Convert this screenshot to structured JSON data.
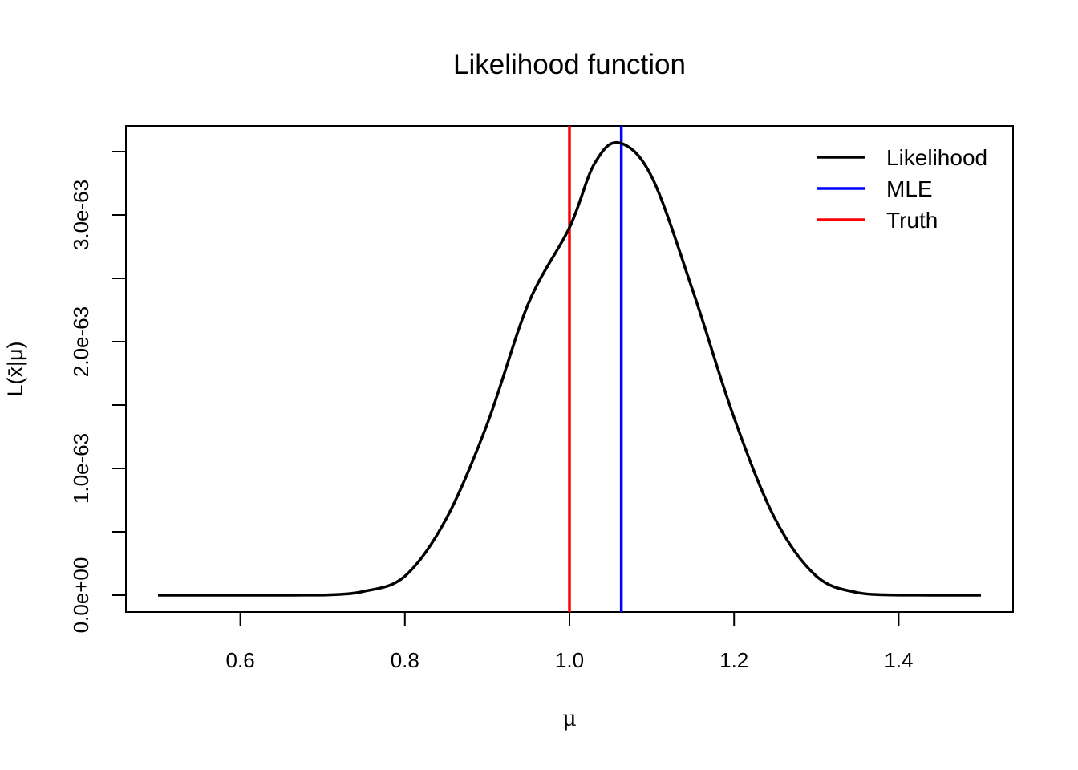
{
  "chart_data": {
    "type": "line",
    "title": "Likelihood function",
    "xlabel": "μ",
    "ylabel": "L(x̄|μ)",
    "xlim": [
      0.5,
      1.5
    ],
    "ylim": [
      0,
      3.5e-63
    ],
    "x_ticks": [
      0.6,
      0.8,
      1.0,
      1.2,
      1.4
    ],
    "x_tick_labels": [
      "0.6",
      "0.8",
      "1.0",
      "1.2",
      "1.4"
    ],
    "y_ticks": [
      0,
      5e-64,
      1e-63,
      1.5e-63,
      2e-63,
      2.5e-63,
      3e-63,
      3.5e-63
    ],
    "y_tick_labels": [
      "0.0e+00",
      "",
      "1.0e-63",
      "",
      "2.0e-63",
      "",
      "3.0e-63",
      ""
    ],
    "series": [
      {
        "name": "Likelihood",
        "color": "#000000",
        "x": [
          0.5,
          0.55,
          0.6,
          0.65,
          0.7,
          0.75,
          0.8,
          0.85,
          0.9,
          0.95,
          1.0,
          1.03,
          1.06,
          1.1,
          1.15,
          1.2,
          1.25,
          1.3,
          1.35,
          1.4,
          1.45,
          1.5
        ],
        "y": [
          0,
          0,
          0,
          0.0,
          1e-66,
          3e-65,
          1.5e-64,
          6e-64,
          1.35e-63,
          2.3e-63,
          2.9e-63,
          3.4e-63,
          3.57e-63,
          3.3e-63,
          2.4e-63,
          1.4e-63,
          6e-64,
          1.5e-64,
          2e-65,
          1e-66,
          0,
          0
        ]
      }
    ],
    "vlines": [
      {
        "name": "MLE",
        "x": 1.063,
        "color": "#0000ff"
      },
      {
        "name": "Truth",
        "x": 1.0,
        "color": "#ff0000"
      }
    ],
    "legend": {
      "position": "top-right",
      "entries": [
        {
          "label": "Likelihood",
          "color": "#000000"
        },
        {
          "label": "MLE",
          "color": "#0000ff"
        },
        {
          "label": "Truth",
          "color": "#ff0000"
        }
      ]
    },
    "grid": false
  }
}
